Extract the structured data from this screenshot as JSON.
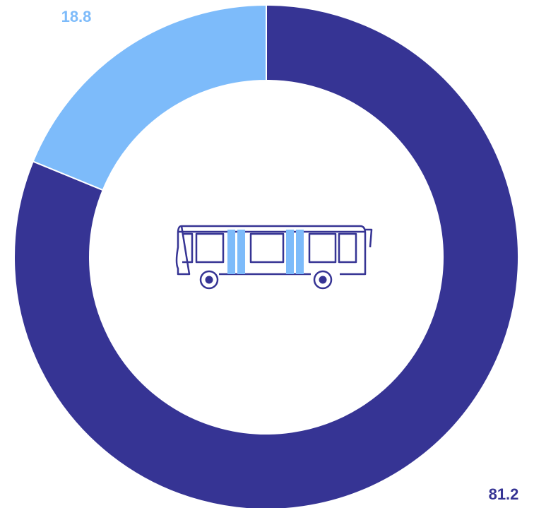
{
  "chart_data": {
    "type": "pie",
    "style": "donut",
    "title": "",
    "center_icon": "bus-icon",
    "slices": [
      {
        "label": "",
        "value": 81.2,
        "display": "81.2",
        "color": "#363494"
      },
      {
        "label": "",
        "value": 18.8,
        "display": "18.8",
        "color": "#7dbbfa"
      }
    ],
    "start": "top",
    "direction": "clockwise"
  }
}
